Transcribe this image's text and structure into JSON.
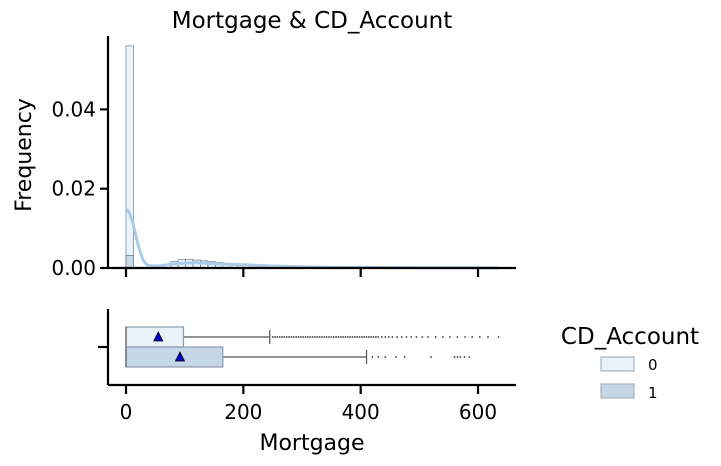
{
  "chart_data": [
    {
      "type": "histogram",
      "title": "Mortgage & CD_Account",
      "xlabel": "",
      "ylabel": "Frequency",
      "xlim": [
        -30,
        665
      ],
      "ylim": [
        0,
        0.058
      ],
      "yticks": [
        0.0,
        0.02,
        0.04
      ],
      "ytick_labels": [
        "0.00",
        "0.02",
        "0.04"
      ],
      "grid": false,
      "series": [
        {
          "name": "0",
          "color": "#eaf2f9",
          "edge": "#4f6b85",
          "bins": [
            {
              "x0": 0,
              "x1": 12.7,
              "density": 0.056
            },
            {
              "x0": 76.2,
              "x1": 88.9,
              "density": 0.0016
            },
            {
              "x0": 88.9,
              "x1": 101.6,
              "density": 0.0021
            },
            {
              "x0": 101.6,
              "x1": 114.3,
              "density": 0.0022
            },
            {
              "x0": 114.3,
              "x1": 127.0,
              "density": 0.002
            },
            {
              "x0": 127.0,
              "x1": 139.7,
              "density": 0.0018
            },
            {
              "x0": 139.7,
              "x1": 152.4,
              "density": 0.0016
            },
            {
              "x0": 152.4,
              "x1": 165.1,
              "density": 0.0014
            },
            {
              "x0": 165.1,
              "x1": 177.8,
              "density": 0.0012
            },
            {
              "x0": 177.8,
              "x1": 190.5,
              "density": 0.001
            },
            {
              "x0": 190.5,
              "x1": 203.2,
              "density": 0.0008
            }
          ],
          "kde": [
            [
              0,
              0.0148
            ],
            [
              5,
              0.0142
            ],
            [
              10,
              0.0122
            ],
            [
              15,
              0.0094
            ],
            [
              20,
              0.0062
            ],
            [
              25,
              0.0036
            ],
            [
              30,
              0.0018
            ],
            [
              35,
              0.0009
            ],
            [
              40,
              0.0006
            ],
            [
              50,
              0.0005
            ],
            [
              60,
              0.0006
            ],
            [
              70,
              0.0008
            ],
            [
              80,
              0.001
            ],
            [
              90,
              0.0011
            ],
            [
              100,
              0.0012
            ],
            [
              110,
              0.0013
            ],
            [
              120,
              0.0013
            ],
            [
              140,
              0.0012
            ],
            [
              160,
              0.001
            ],
            [
              180,
              0.0009
            ],
            [
              200,
              0.0008
            ],
            [
              250,
              0.0005
            ],
            [
              300,
              0.0003
            ],
            [
              350,
              0.0002
            ],
            [
              400,
              0.00015
            ],
            [
              450,
              0.0001
            ],
            [
              500,
              7e-05
            ],
            [
              550,
              5e-05
            ],
            [
              600,
              4e-05
            ],
            [
              635,
              3e-05
            ]
          ]
        },
        {
          "name": "1",
          "color": "#c5d6e6",
          "edge": "#4f6b85",
          "bins": [
            {
              "x0": 0,
              "x1": 12.7,
              "density": 0.0032
            }
          ]
        }
      ]
    },
    {
      "type": "boxplot",
      "xlabel": "Mortgage",
      "xlim": [
        -30,
        665
      ],
      "xticks": [
        0,
        200,
        400,
        600
      ],
      "xtick_labels": [
        "0",
        "200",
        "400",
        "600"
      ],
      "grid": false,
      "boxes": [
        {
          "name": "0",
          "color": "#eaf2f9",
          "q1": 0,
          "median": 0,
          "q3": 98,
          "whisker_low": 0,
          "whisker_high": 245,
          "mean": 55,
          "outliers": [
            250,
            254,
            258,
            262,
            266,
            270,
            274,
            278,
            282,
            286,
            290,
            294,
            298,
            302,
            306,
            310,
            314,
            318,
            322,
            326,
            330,
            334,
            338,
            342,
            346,
            350,
            354,
            358,
            362,
            366,
            370,
            374,
            378,
            382,
            386,
            390,
            394,
            398,
            402,
            406,
            410,
            414,
            418,
            422,
            426,
            430,
            436,
            442,
            448,
            454,
            462,
            470,
            478,
            486,
            495,
            505,
            515,
            528,
            540,
            552,
            565,
            578,
            590,
            603,
            617,
            635
          ]
        },
        {
          "name": "1",
          "color": "#c5d6e6",
          "q1": 0,
          "median": 0,
          "q3": 165,
          "whisker_low": 0,
          "whisker_high": 410,
          "mean": 92,
          "outliers": [
            420,
            430,
            442,
            460,
            475,
            520,
            560,
            565,
            570,
            577,
            585
          ]
        }
      ]
    }
  ],
  "legend": {
    "title": "CD_Account",
    "position": "right",
    "items": [
      {
        "label": "0",
        "color": "#eaf2f9"
      },
      {
        "label": "1",
        "color": "#c5d6e6"
      }
    ]
  },
  "colors": {
    "kde": "#a9cce8",
    "mean_marker": "#0000cc",
    "box_edge": "#8a9aaa",
    "whisker": "#555555"
  }
}
